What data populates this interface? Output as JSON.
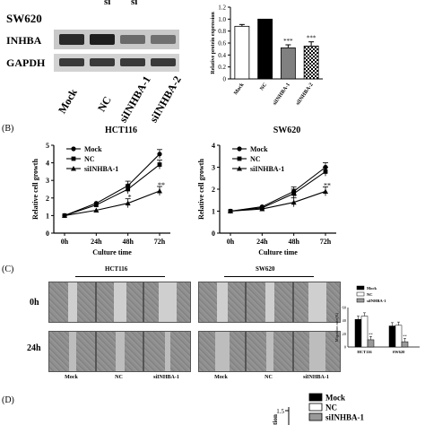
{
  "figure": {
    "panel_b_label": "(B)",
    "panel_c_label": "(C)",
    "panel_d_label": "(D)"
  },
  "western_blot": {
    "cell_line": "SW620",
    "row_labels": [
      "INHBA",
      "GAPDH"
    ],
    "lane_labels": [
      "Mock",
      "NC",
      "siINHBA-1",
      "siINHBA-2"
    ],
    "top_cut_labels": [
      "si",
      "si"
    ]
  },
  "chart_data": [
    {
      "id": "protein-expression",
      "type": "bar",
      "ylabel": "Relative protein expression",
      "categories": [
        "Mock",
        "NC",
        "siINHBA-1",
        "siINHBA-2"
      ],
      "values": [
        0.88,
        1.0,
        0.52,
        0.55
      ],
      "errors": [
        0.03,
        0,
        0.05,
        0.07
      ],
      "significance": [
        "",
        "",
        "***",
        "***"
      ],
      "ylim": [
        0,
        1.2
      ],
      "yticks": [
        "0",
        "0.2",
        "0.4",
        "0.6",
        "0.8",
        "1.0",
        "1.2"
      ],
      "colors": [
        "#ffffff",
        "#000000",
        "#808080",
        "checker"
      ]
    },
    {
      "id": "hct116-growth",
      "type": "line",
      "title": "HCT116",
      "xlabel": "Culture time",
      "ylabel": "Relative cell growth",
      "categories": [
        "0h",
        "24h",
        "48h",
        "72h"
      ],
      "ylim": [
        0,
        5
      ],
      "yticks": [
        "0",
        "1",
        "2",
        "3",
        "4",
        "5"
      ],
      "series": [
        {
          "name": "Mock",
          "values": [
            1.0,
            1.7,
            2.7,
            4.5
          ],
          "marker": "circle"
        },
        {
          "name": "NC",
          "values": [
            1.0,
            1.6,
            2.5,
            3.9
          ],
          "marker": "square"
        },
        {
          "name": "siINHBA-1",
          "values": [
            1.0,
            1.3,
            1.7,
            2.4
          ],
          "marker": "triangle"
        }
      ],
      "significance": [
        {
          "x": "48h",
          "text": "*"
        },
        {
          "x": "72h",
          "text": "**"
        }
      ]
    },
    {
      "id": "sw620-growth",
      "type": "line",
      "title": "SW620",
      "xlabel": "Culture time",
      "ylabel": "Relative cell growth",
      "categories": [
        "0h",
        "24h",
        "48h",
        "72h"
      ],
      "ylim": [
        0,
        4
      ],
      "yticks": [
        "0",
        "1",
        "2",
        "3",
        "4"
      ],
      "series": [
        {
          "name": "Mock",
          "values": [
            1.0,
            1.2,
            1.9,
            3.0
          ],
          "marker": "circle"
        },
        {
          "name": "NC",
          "values": [
            1.0,
            1.15,
            1.8,
            2.8
          ],
          "marker": "square"
        },
        {
          "name": "siINHBA-1",
          "values": [
            1.0,
            1.1,
            1.4,
            1.9
          ],
          "marker": "triangle"
        }
      ],
      "significance": [
        {
          "x": "48h",
          "text": "*"
        },
        {
          "x": "72h",
          "text": "**"
        }
      ]
    },
    {
      "id": "migration-rate",
      "type": "bar",
      "ylabel": "Migration rate(%)",
      "categories": [
        "HCT116",
        "SW620"
      ],
      "ylim": [
        0,
        60
      ],
      "yticks": [
        "0",
        "20",
        "40",
        "60"
      ],
      "series": [
        {
          "name": "Mock",
          "values": [
            42,
            32
          ],
          "color": "#000000"
        },
        {
          "name": "NC",
          "values": [
            47,
            33
          ],
          "color": "#ffffff"
        },
        {
          "name": "siINHBA-1",
          "values": [
            11,
            8
          ],
          "color": "#999999"
        }
      ],
      "significance_labels": [
        "**",
        "**"
      ]
    },
    {
      "id": "panel-d-bar",
      "type": "bar",
      "ylabel": "tion",
      "ylim": [
        0,
        1.5
      ],
      "yticks": [
        "1.5"
      ],
      "series": [
        {
          "name": "Mock",
          "color": "#000000"
        },
        {
          "name": "NC",
          "color": "#ffffff"
        },
        {
          "name": "siINHBA-1",
          "color": "#999999"
        }
      ]
    }
  ],
  "wound_healing": {
    "groups": [
      "HCT116",
      "SW620"
    ],
    "time_labels": [
      "0h",
      "24h"
    ],
    "column_labels": [
      "Mock",
      "NC",
      "siINHBA-1",
      "Mock",
      "NC",
      "siINHBA-1"
    ]
  }
}
